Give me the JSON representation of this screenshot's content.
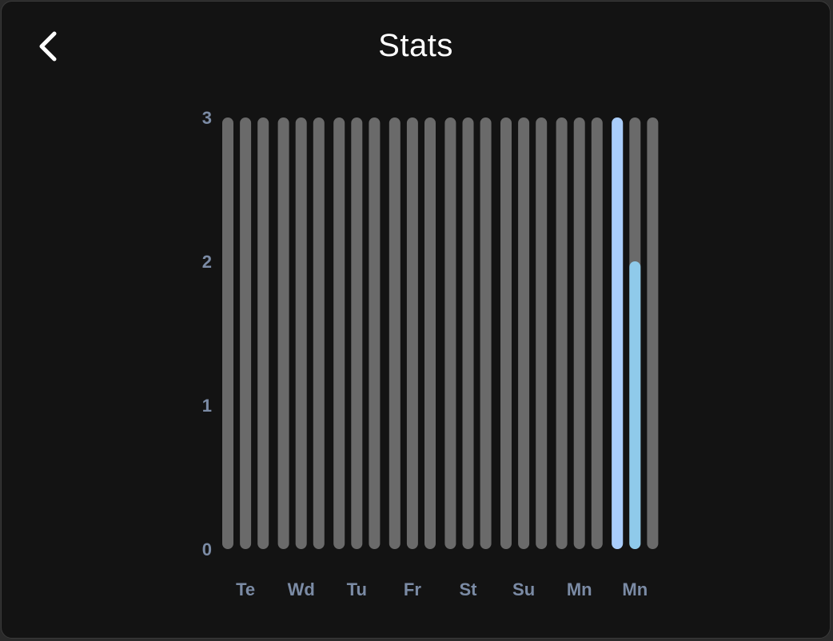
{
  "header": {
    "title": "Stats",
    "back_icon": "chevron-left-icon"
  },
  "colors": {
    "background": "#131313",
    "track": "#6a6a6a",
    "highlight_primary": "#a9cdfb",
    "highlight_secondary": "#8fcaea",
    "tick_label": "#7b8ba5",
    "title": "#ffffff"
  },
  "chart_data": {
    "type": "bar",
    "ylim": [
      0,
      3
    ],
    "y_ticks": [
      "0",
      "1",
      "2",
      "3"
    ],
    "x_tick_labels": [
      "Te",
      "Wd",
      "Tu",
      "Fr",
      "St",
      "Su",
      "Mn",
      "Mn"
    ],
    "bars_per_day": 3,
    "series": [
      {
        "values": [
          0,
          0,
          0,
          0,
          0,
          0,
          0,
          0,
          0,
          0,
          0,
          0,
          0,
          0,
          0,
          0,
          0,
          0,
          0,
          0,
          0,
          3,
          2,
          0
        ]
      }
    ]
  }
}
